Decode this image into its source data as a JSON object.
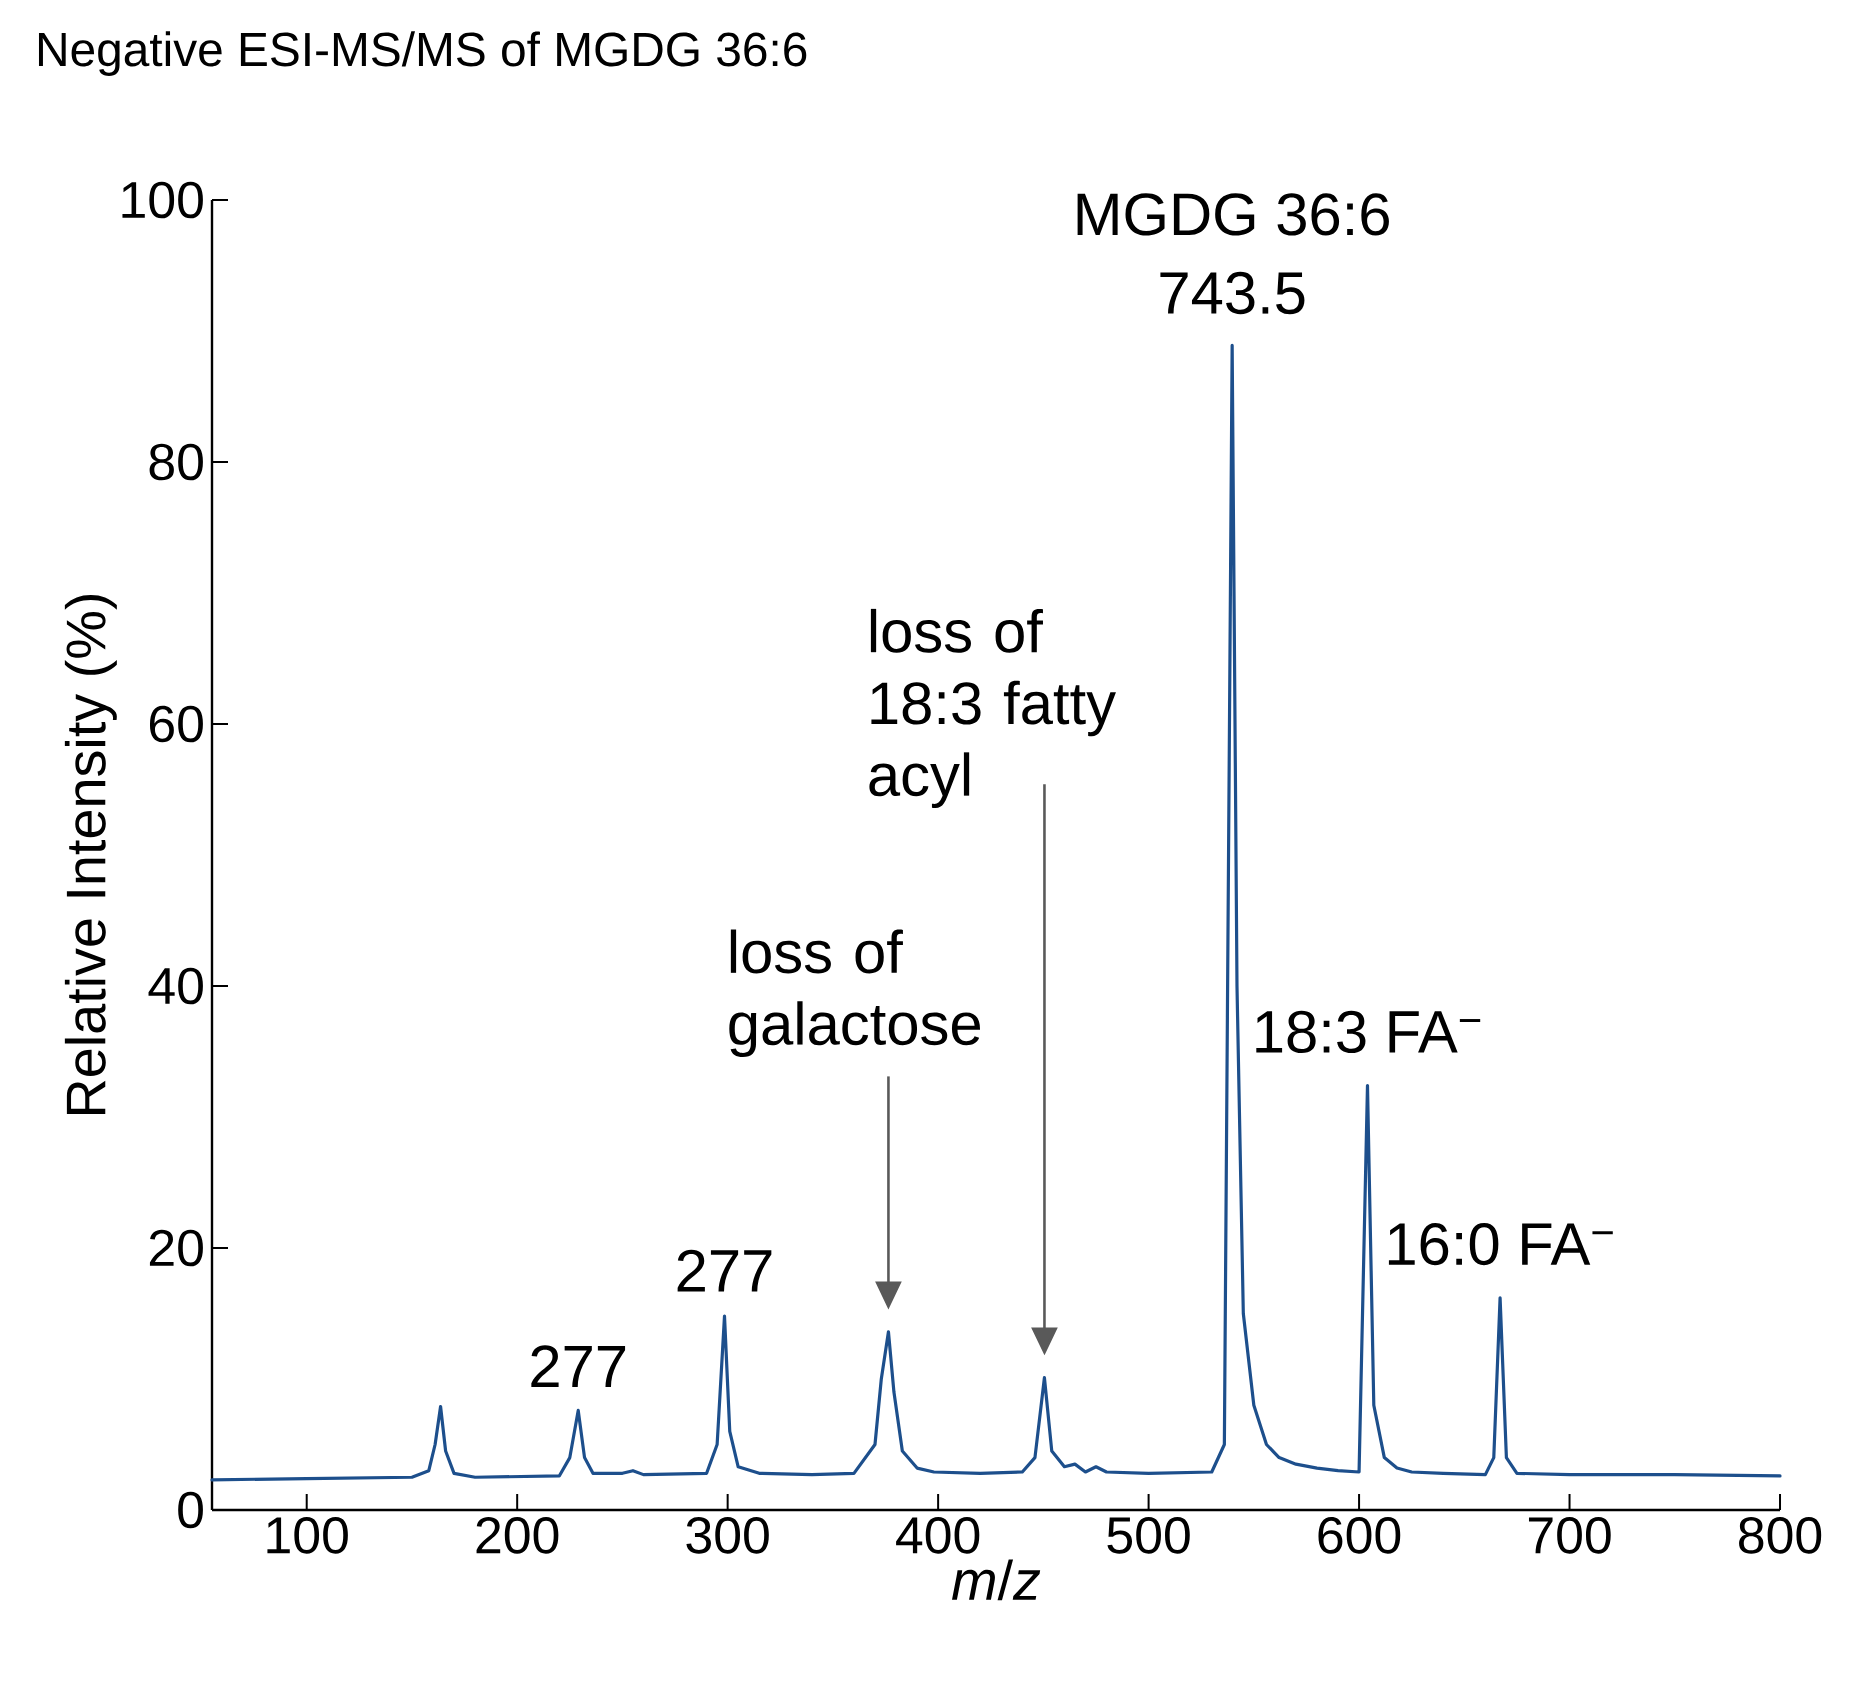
{
  "chart_data": {
    "type": "line",
    "title": "Negative ESI-MS/MS of MGDG 36:6",
    "xlabel": "*m*/*z*",
    "ylabel": "Relative Intensity (%)",
    "xlim": [
      55,
      800
    ],
    "xticks": [
      100,
      200,
      300,
      400,
      500,
      600,
      700,
      800
    ],
    "ylim": [
      0,
      100
    ],
    "yticks": [
      0,
      20,
      40,
      60,
      80,
      100
    ],
    "grid": false,
    "marker": "none",
    "line_style": "solid",
    "series": [
      {
        "color": "#1d4f8c",
        "x": [
          55,
          100,
          150,
          158,
          161,
          163.6,
          166,
          170,
          180,
          220,
          225,
          229,
          232,
          236,
          250,
          255,
          260,
          290,
          295,
          298.5,
          301,
          305,
          315,
          340,
          360,
          370,
          373,
          376.4,
          379,
          383,
          390,
          398,
          420,
          440,
          446,
          450.5,
          454,
          460,
          465,
          470,
          475,
          480,
          500,
          530,
          536,
          539.7,
          542,
          545,
          550,
          556,
          562,
          570,
          580,
          590,
          600,
          604,
          607,
          612,
          618,
          625,
          640,
          660,
          664,
          667,
          670,
          675,
          700,
          750,
          800
        ],
        "values": [
          2.3,
          2.4,
          2.5,
          3,
          5,
          7.9,
          4.5,
          2.8,
          2.5,
          2.6,
          4,
          7.6,
          4,
          2.8,
          2.8,
          3.0,
          2.7,
          2.8,
          5,
          14.8,
          6,
          3.3,
          2.8,
          2.7,
          2.8,
          5,
          10,
          13.6,
          9,
          4.5,
          3.2,
          2.9,
          2.8,
          2.9,
          4,
          10.1,
          4.5,
          3.3,
          3.5,
          2.9,
          3.3,
          2.9,
          2.8,
          2.9,
          5,
          88.9,
          40,
          15,
          8,
          5,
          4,
          3.5,
          3.2,
          3.0,
          2.9,
          32.4,
          8,
          4,
          3.2,
          2.9,
          2.8,
          2.7,
          4,
          16.2,
          4,
          2.8,
          2.7,
          2.7,
          2.6
        ]
      }
    ],
    "annotations": [
      {
        "text": "277",
        "x": 229,
        "y": 7.6
      },
      {
        "text": "277",
        "x": 298.5,
        "y": 14.8
      },
      "loss of galactose",
      "loss of 18:3 fatty acyl",
      {
        "text": "MGDG 36:6",
        "x": 539.7,
        "y": 88.9
      },
      {
        "text": "743.5",
        "x": 539.7,
        "y": 88.9
      },
      {
        "text": "18:3 FA$^{−}$",
        "x": 604,
        "y": 32.4
      },
      {
        "text": "16:0 FA$^{−}$",
        "x": 667,
        "y": 16.2
      }
    ]
  }
}
